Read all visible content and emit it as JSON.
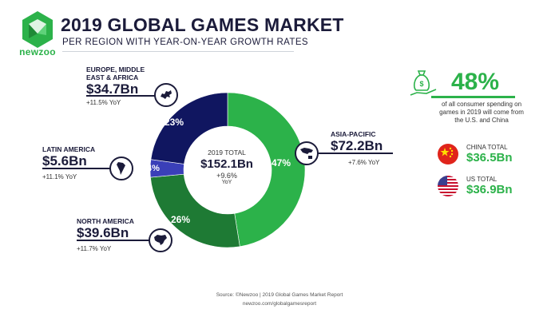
{
  "brand": {
    "name": "newzoo"
  },
  "header": {
    "title": "2019 GLOBAL GAMES MARKET",
    "subtitle": "PER REGION WITH YEAR-ON-YEAR GROWTH RATES"
  },
  "center": {
    "label": "2019 TOTAL",
    "value": "$152.1Bn",
    "growth": "+9.6%",
    "growth_unit": "YoY"
  },
  "regions": [
    {
      "name": "ASIA-PACIFIC",
      "value": "$72.2Bn",
      "yoy": "+7.6% YoY",
      "share_label": "47%",
      "icon": "asia-pacific-map-icon"
    },
    {
      "name": "NORTH AMERICA",
      "value": "$39.6Bn",
      "yoy": "+11.7% YoY",
      "share_label": "26%",
      "icon": "north-america-map-icon"
    },
    {
      "name": "LATIN AMERICA",
      "value": "$5.6Bn",
      "yoy": "+11.1% YoY",
      "share_label": "4%",
      "icon": "latin-america-map-icon"
    },
    {
      "name_line1": "EUROPE, MIDDLE",
      "name_line2": "EAST & AFRICA",
      "value": "$34.7Bn",
      "yoy": "+11.5% YoY",
      "share_label": "23%",
      "icon": "europe-map-icon"
    }
  ],
  "side": {
    "percent": "48%",
    "description": "of all consumer spending on games in 2019 will come from the U.S. and China",
    "china": {
      "label": "CHINA TOTAL",
      "value": "$36.5Bn",
      "icon": "china-flag-icon"
    },
    "us": {
      "label": "US TOTAL",
      "value": "$36.9Bn",
      "icon": "us-flag-icon"
    },
    "money_icon": "money-bag-icon"
  },
  "footer": {
    "source": "Source: ©Newzoo | 2019 Global Games Market Report",
    "url": "newzoo.com/globalgamesreport"
  },
  "colors": {
    "asia_pacific": "#2cb24a",
    "north_america": "#1e7a34",
    "latin_america": "#3a3fb8",
    "emea": "#101660",
    "accent_green": "#2cb24a",
    "navy": "#1b1b3a"
  },
  "chart_data": {
    "type": "pie",
    "title": "2019 GLOBAL GAMES MARKET",
    "subtitle": "PER REGION WITH YEAR-ON-YEAR GROWTH RATES",
    "unit": "Bn USD",
    "total": 152.1,
    "categories": [
      "ASIA-PACIFIC",
      "NORTH AMERICA",
      "LATIN AMERICA",
      "EUROPE, MIDDLE EAST & AFRICA"
    ],
    "values": [
      72.2,
      39.6,
      5.6,
      34.7
    ],
    "shares_percent": [
      47,
      26,
      4,
      23
    ],
    "yoy_growth_percent": [
      7.6,
      11.7,
      11.1,
      11.5
    ],
    "total_yoy_growth_percent": 9.6
  }
}
